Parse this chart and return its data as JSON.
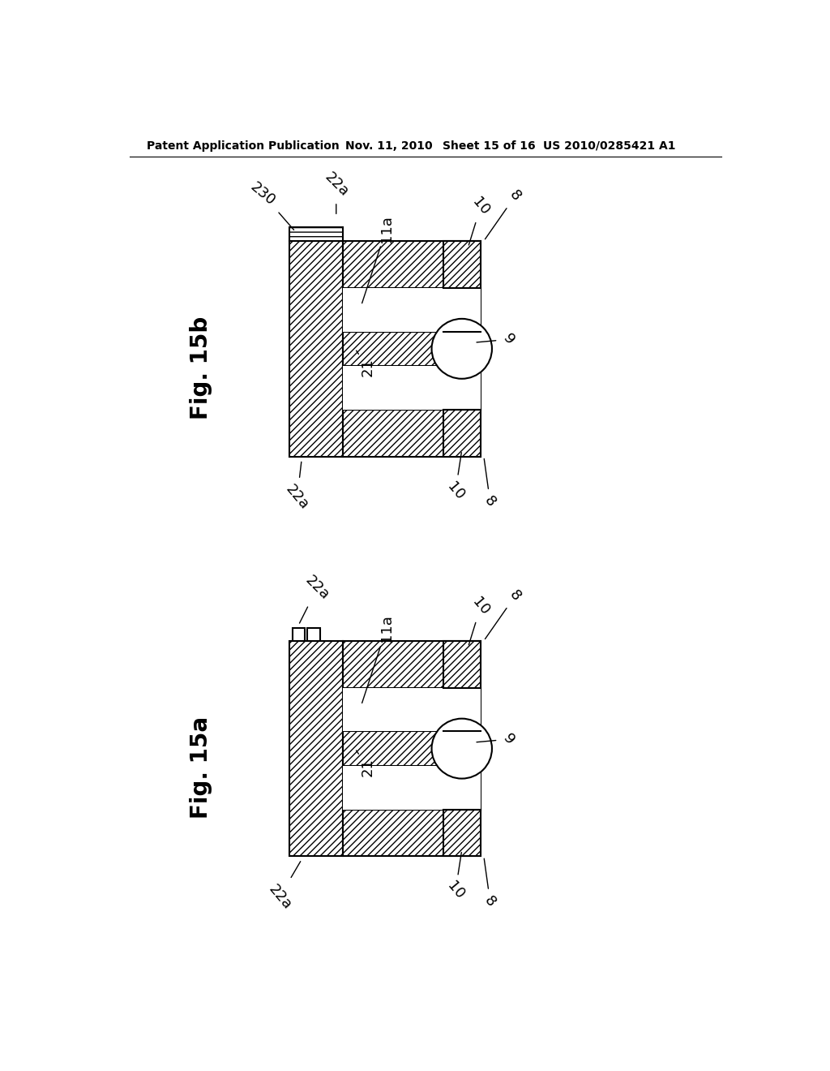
{
  "background_color": "#ffffff",
  "header_text": "Patent Application Publication",
  "header_date": "Nov. 11, 2010",
  "header_sheet": "Sheet 15 of 16",
  "header_patent": "US 2010/0285421 A1",
  "fig_b_label": "Fig. 15b",
  "fig_a_label": "Fig. 15a"
}
